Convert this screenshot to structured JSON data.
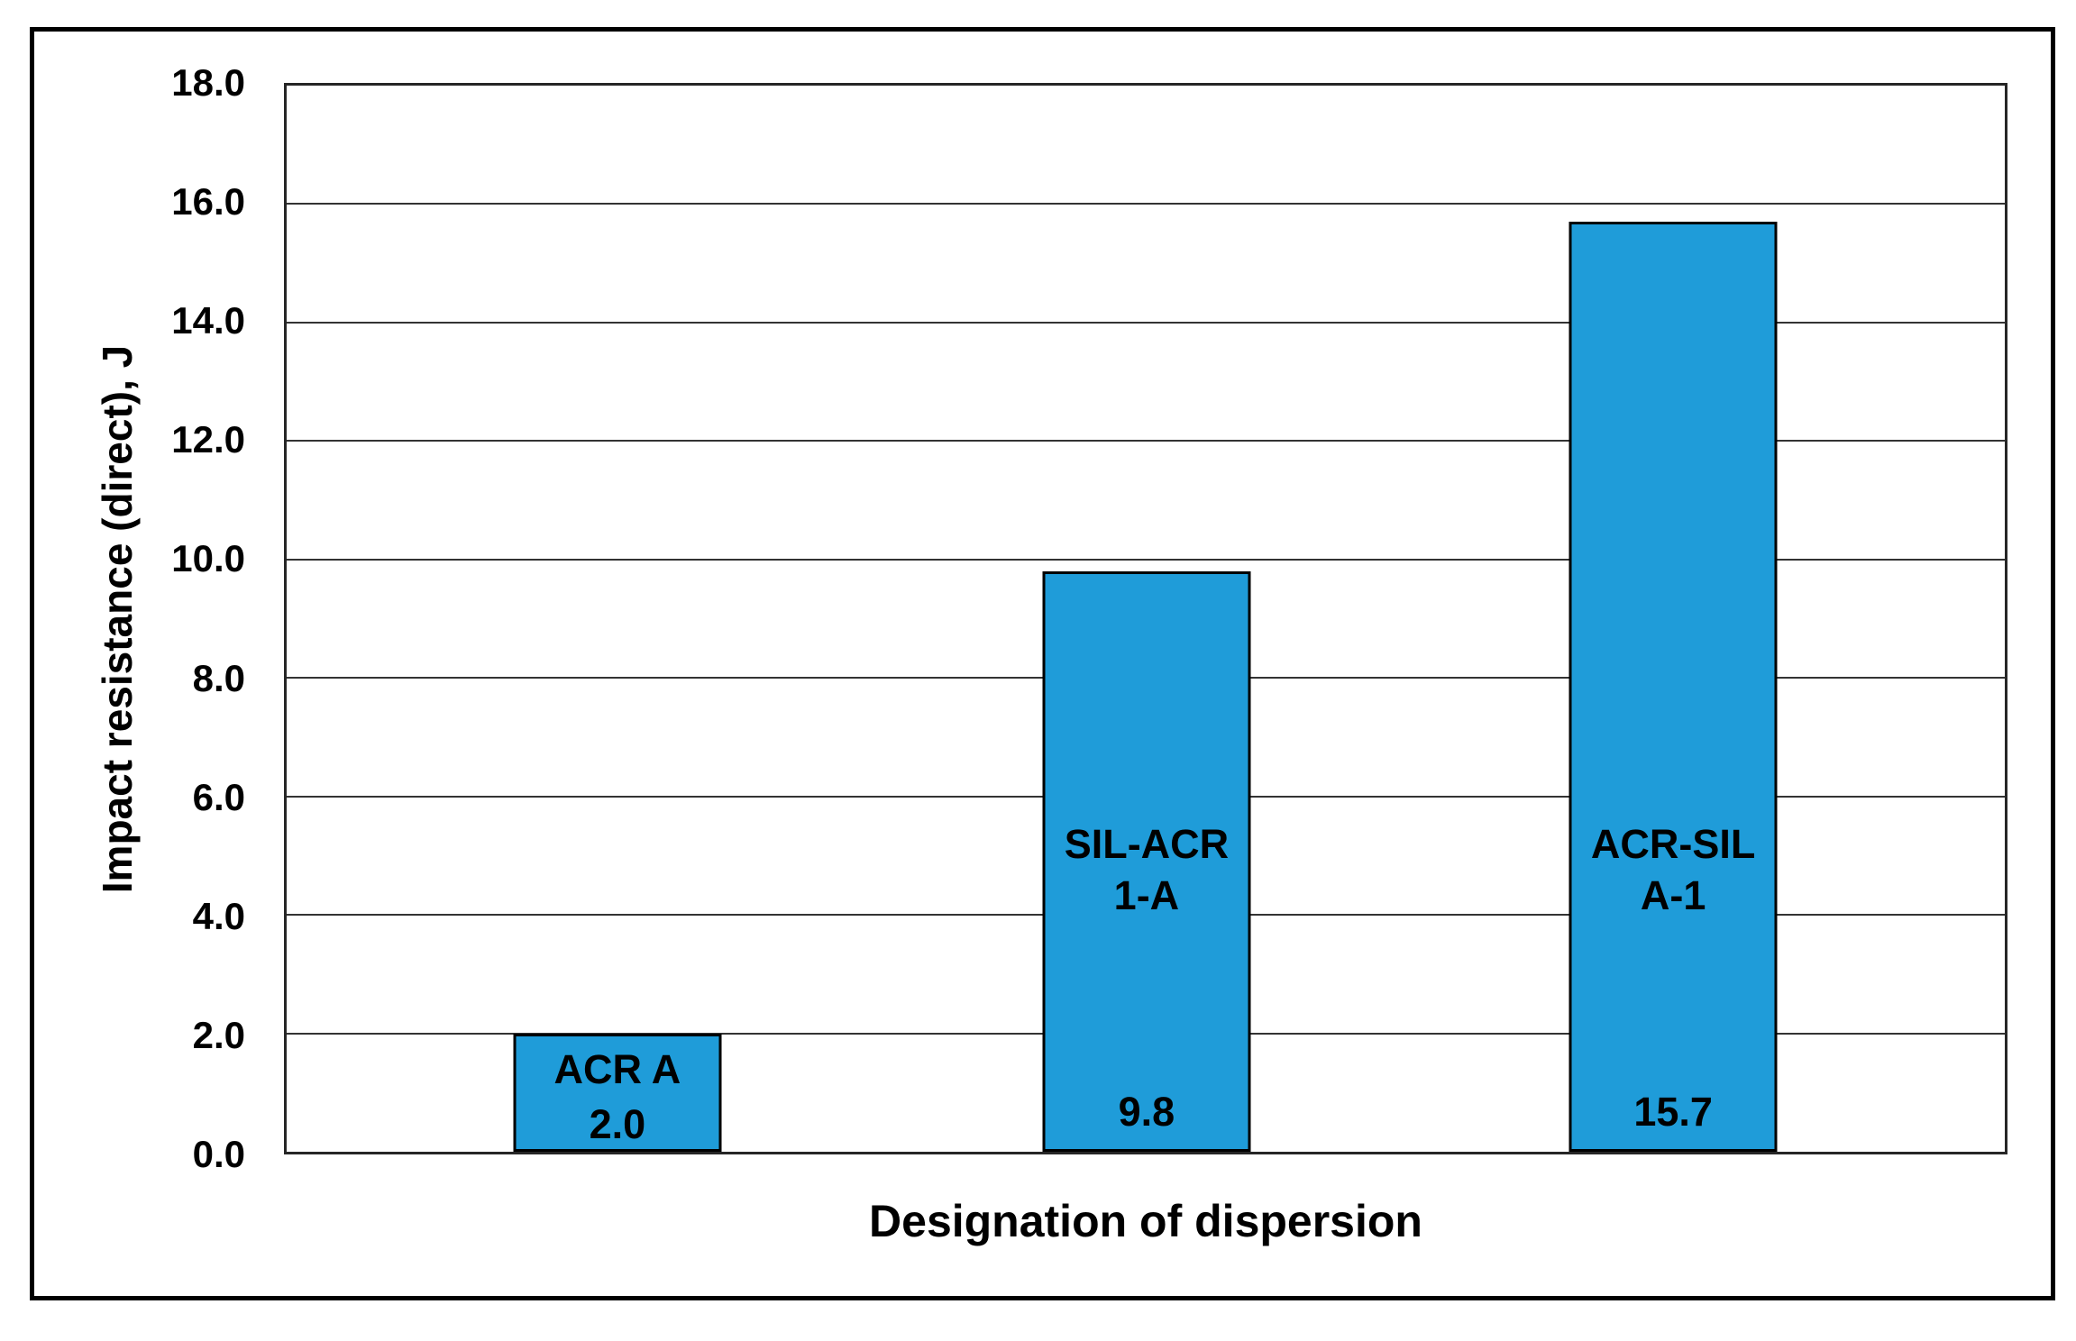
{
  "figure": {
    "background": "#ffffff",
    "border_color": "#000000"
  },
  "chart_data": {
    "type": "bar",
    "title": "",
    "xlabel": "Designation of dispersion",
    "ylabel": "Impact resistance (direct), J",
    "categories": [
      "ACR A",
      "SIL-ACR 1-A",
      "ACR-SIL A-1"
    ],
    "values": [
      2.0,
      9.8,
      15.7
    ],
    "ylim": [
      0,
      18
    ],
    "ytick_step": 2,
    "yticks": [
      "0.0",
      "2.0",
      "4.0",
      "6.0",
      "8.0",
      "10.0",
      "12.0",
      "14.0",
      "16.0",
      "18.0"
    ],
    "grid": true,
    "legend": false,
    "bars": [
      {
        "category": "ACR A",
        "name_lines": [
          "ACR A"
        ],
        "value": 2.0,
        "value_label": "2.0",
        "center_pct": 19.25
      },
      {
        "category": "SIL-ACR 1-A",
        "name_lines": [
          "SIL-ACR",
          "1-A"
        ],
        "value": 9.8,
        "value_label": "9.8",
        "center_pct": 50.05
      },
      {
        "category": "ACR-SIL A-1",
        "name_lines": [
          "ACR-SIL",
          "A-1"
        ],
        "value": 15.7,
        "value_label": "15.7",
        "center_pct": 80.7
      }
    ],
    "colors": {
      "bar_fill": "#1F9CD9",
      "bar_border": "#000000",
      "gridline": "#333333",
      "axis": "#262626",
      "text": "#000000"
    }
  }
}
